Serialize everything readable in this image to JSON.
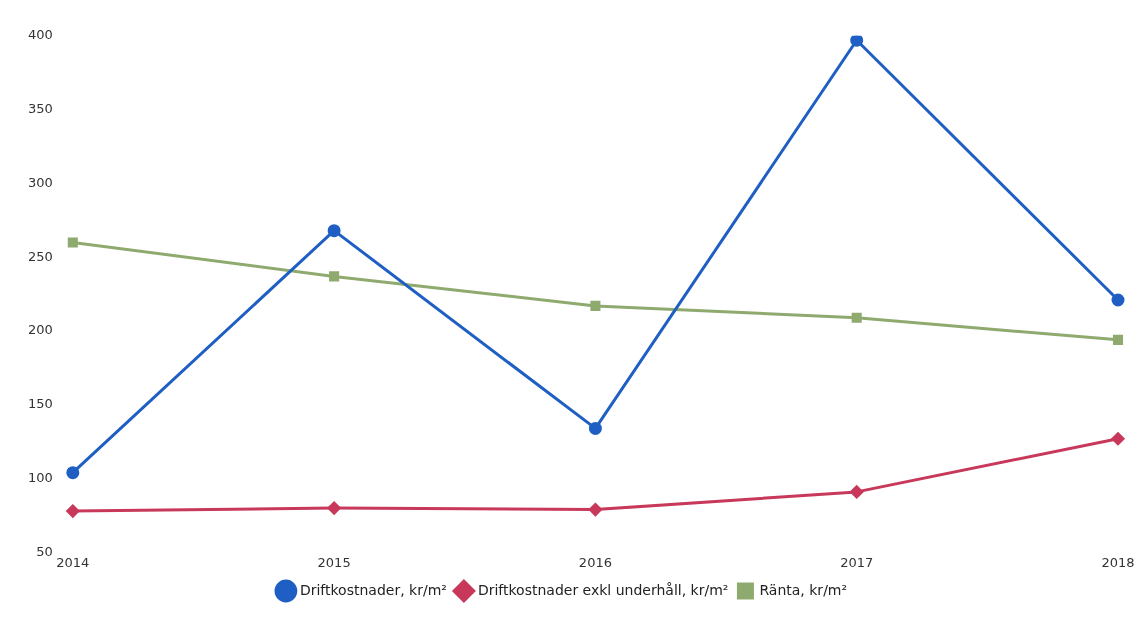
{
  "chart_data": {
    "type": "line",
    "categories": [
      "2014",
      "2015",
      "2016",
      "2017",
      "2018"
    ],
    "series": [
      {
        "name": "Driftkostnader, kr/m²",
        "color": "#1f5fc4",
        "marker": "circle",
        "values": [
          104,
          268,
          134,
          397,
          221
        ]
      },
      {
        "name": "Driftkostnader exkl underhåll, kr/m²",
        "color": "#c8385a",
        "marker": "diamond",
        "values": [
          78,
          80,
          79,
          91,
          127
        ]
      },
      {
        "name": "Ränta, kr/m²",
        "color": "#8faa6e",
        "marker": "square",
        "values": [
          260,
          237,
          217,
          209,
          194
        ]
      }
    ],
    "ylim": [
      50,
      400
    ],
    "yticks": [
      50,
      100,
      150,
      200,
      250,
      300,
      350,
      400
    ],
    "grid": false,
    "legend": "bottom"
  }
}
